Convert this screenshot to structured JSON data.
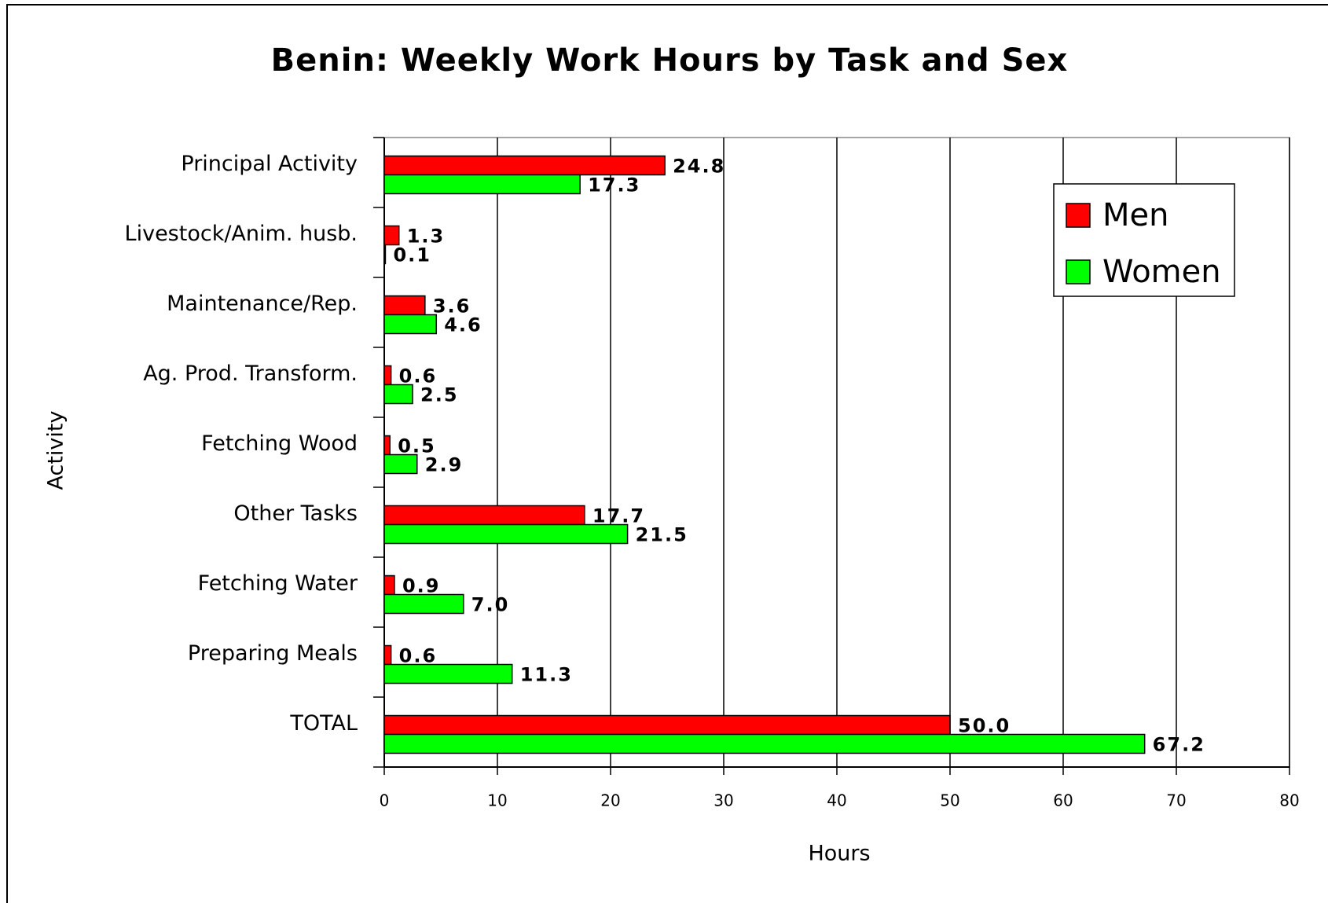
{
  "chart_data": {
    "type": "bar",
    "orientation": "horizontal",
    "title": "Benin: Weekly Work Hours by Task and Sex",
    "x_label": "Hours",
    "y_label": "Activity",
    "categories": [
      "Principal Activity",
      "Livestock/Anim. husb.",
      "Maintenance/Rep.",
      "Ag. Prod. Transform.",
      "Fetching Wood",
      "Other Tasks",
      "Fetching Water",
      "Preparing Meals",
      "TOTAL"
    ],
    "series": [
      {
        "name": "Men",
        "color": "#ff0000",
        "values": [
          24.8,
          1.3,
          3.6,
          0.6,
          0.5,
          17.7,
          0.9,
          0.6,
          50.0
        ],
        "value_labels": [
          "24.8",
          "1.3",
          "3.6",
          "0.6",
          "0.5",
          "17.7",
          "0.9",
          "0.6",
          "50.0"
        ]
      },
      {
        "name": "Women",
        "color": "#00ff00",
        "values": [
          17.3,
          0.1,
          4.6,
          2.5,
          2.9,
          21.5,
          7.0,
          11.3,
          67.2
        ],
        "value_labels": [
          "17.3",
          "0.1",
          "4.6",
          "2.5",
          "2.9",
          "21.5",
          "7.0",
          "11.3",
          "67.2"
        ]
      }
    ],
    "xlim": [
      0,
      80
    ],
    "xticks": [
      0,
      10,
      20,
      30,
      40,
      50,
      60,
      70,
      80
    ],
    "grid": true,
    "legend": "upper right"
  }
}
